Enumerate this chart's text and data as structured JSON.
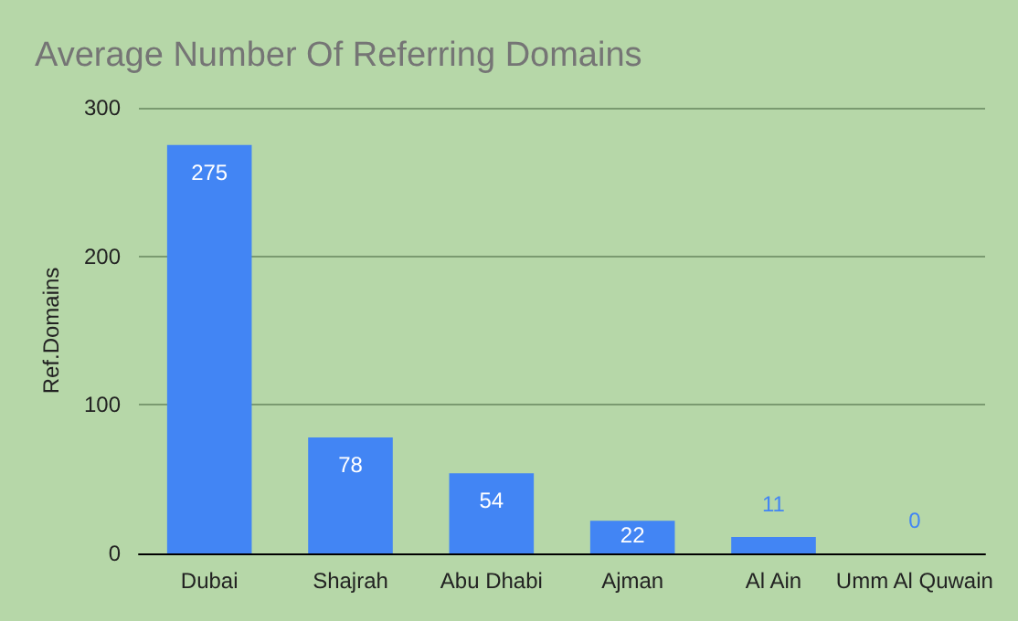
{
  "chart_data": {
    "type": "bar",
    "title": "Average Number Of Referring Domains",
    "ylabel": "Ref.Domains",
    "categories": [
      "Dubai",
      "Shajrah",
      "Abu Dhabi",
      "Ajman",
      "Al Ain",
      "Umm Al Quwain"
    ],
    "values": [
      275,
      78,
      54,
      22,
      11,
      0
    ],
    "color": "#4285f4",
    "ylim": [
      0,
      300
    ],
    "yticks": [
      0,
      100,
      200,
      300
    ],
    "grid": "y",
    "data_labels": true
  }
}
